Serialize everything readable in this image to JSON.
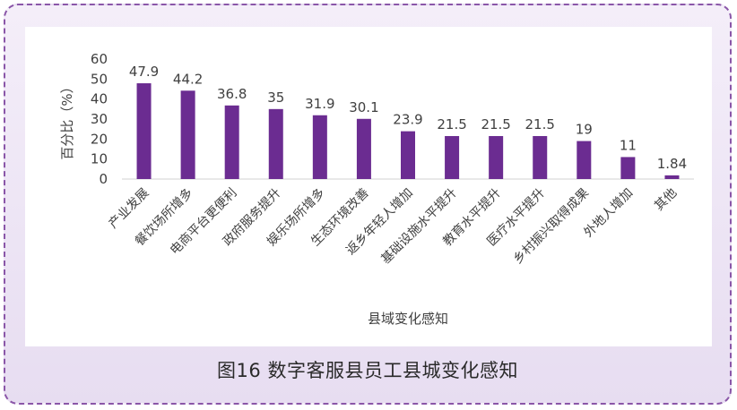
{
  "caption": "图16 数字客服县员工县城变化感知",
  "chart_data": {
    "type": "bar",
    "title": "",
    "xlabel": "县域变化感知",
    "ylabel": "百分比（%）",
    "ylim": [
      0,
      60
    ],
    "yticks": [
      0,
      10,
      20,
      30,
      40,
      50,
      60
    ],
    "grid": false,
    "legend": "none",
    "bar_color": "#6b2c91",
    "categories": [
      "产业发展",
      "餐饮场所增多",
      "电商平台更便利",
      "政府服务提升",
      "娱乐场所增多",
      "生态环境改善",
      "返乡年轻人增加",
      "基础设施水平提升",
      "教育水平提升",
      "医疗水平提升",
      "乡村振兴取得成果",
      "外地人增加",
      "其他"
    ],
    "values": [
      47.9,
      44.2,
      36.8,
      35,
      31.9,
      30.1,
      23.9,
      21.5,
      21.5,
      21.5,
      19,
      11,
      1.84
    ],
    "value_labels": [
      "47.9",
      "44.2",
      "36.8",
      "35",
      "31.9",
      "30.1",
      "23.9",
      "21.5",
      "21.5",
      "21.5",
      "19",
      "11",
      "1.84"
    ]
  }
}
